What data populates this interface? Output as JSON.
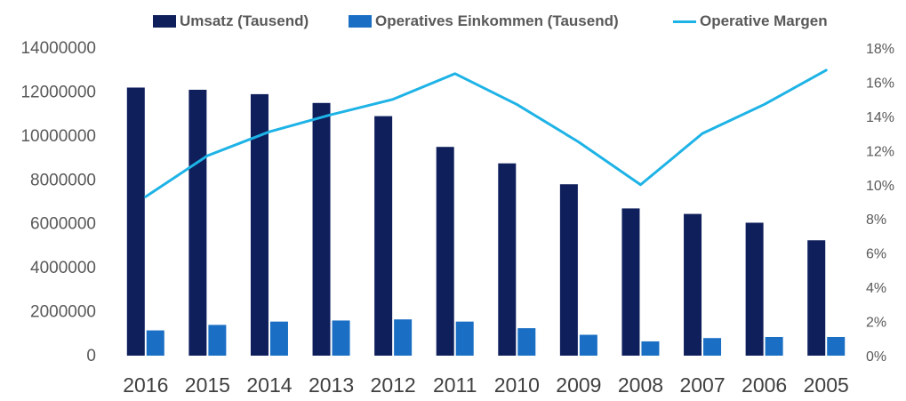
{
  "chart_data": {
    "type": "bar",
    "categories": [
      "2016",
      "2015",
      "2014",
      "2013",
      "2012",
      "2011",
      "2010",
      "2009",
      "2008",
      "2007",
      "2006",
      "2005"
    ],
    "series": [
      {
        "name": "Umsatz (Tausend)",
        "type": "bar",
        "axis": "left",
        "color": "#0f1f5c",
        "values": [
          12200000,
          12100000,
          11900000,
          11500000,
          10900000,
          9500000,
          8750000,
          7800000,
          6700000,
          6450000,
          6050000,
          5250000
        ]
      },
      {
        "name": "Operatives Einkommen (Tausend)",
        "type": "bar",
        "axis": "left",
        "color": "#1a6fc4",
        "values": [
          1150000,
          1400000,
          1550000,
          1600000,
          1650000,
          1550000,
          1250000,
          950000,
          650000,
          800000,
          850000,
          850000
        ]
      },
      {
        "name": "Operative Margen",
        "type": "line",
        "axis": "right",
        "color": "#1eb3e6",
        "values": [
          9.3,
          11.7,
          13.1,
          14.1,
          15.0,
          16.5,
          14.7,
          12.5,
          10.0,
          13.0,
          14.7,
          16.7
        ]
      }
    ],
    "y_left": {
      "min": 0,
      "max": 14000000,
      "step": 2000000,
      "ticks": [
        "0",
        "2000000",
        "4000000",
        "6000000",
        "8000000",
        "10000000",
        "12000000",
        "14000000"
      ]
    },
    "y_right": {
      "min": 0,
      "max": 18,
      "step": 2,
      "ticks": [
        "0%",
        "2%",
        "4%",
        "6%",
        "8%",
        "10%",
        "12%",
        "14%",
        "16%",
        "18%"
      ]
    },
    "grid": false,
    "legend_position": "top-center",
    "title": "",
    "xlabel": "",
    "ylabel": ""
  }
}
